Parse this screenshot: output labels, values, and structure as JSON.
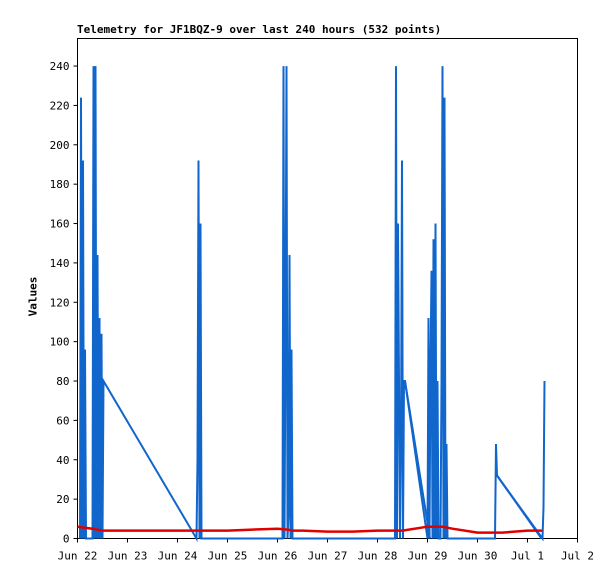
{
  "chart_data": {
    "type": "line",
    "title": "Telemetry for JF1BQZ-9 over last 240 hours (532 points)",
    "ylabel": "Values",
    "xlabel": "",
    "ylim": [
      0,
      254
    ],
    "y_ticks": [
      0,
      20,
      40,
      60,
      80,
      100,
      120,
      140,
      160,
      180,
      200,
      220,
      240
    ],
    "x_ticks": [
      "Jun 22",
      "Jun 23",
      "Jun 24",
      "Jun 25",
      "Jun 26",
      "Jun 27",
      "Jun 28",
      "Jun 29",
      "Jun 30",
      "Jul 1",
      "Jul 2"
    ],
    "x_range_days": [
      0,
      10
    ],
    "grid": false,
    "colors": {
      "blue": "#1166cc",
      "red": "#e00000",
      "axis": "#000000"
    },
    "series": [
      {
        "color": "#1166cc",
        "x": [
          0.05,
          0.07,
          0.09,
          0.11,
          0.13,
          0.15,
          0.17,
          0.2,
          0.3,
          0.32,
          0.34,
          0.36,
          0.38,
          0.4,
          0.42,
          0.44,
          0.46,
          0.48,
          0.5,
          0.52,
          2.38,
          2.4,
          2.42,
          2.44,
          2.46,
          2.48,
          4.1,
          4.12,
          4.14,
          4.16,
          4.18,
          4.2,
          4.22,
          4.24,
          4.26,
          4.28,
          4.3,
          6.35,
          6.37,
          6.39,
          6.41,
          6.45,
          6.47,
          6.49,
          6.51,
          6.53,
          6.55,
          7.0,
          7.02,
          7.04,
          7.06,
          7.08,
          7.1,
          7.12,
          7.14,
          7.16,
          7.18,
          7.2,
          7.22,
          7.24,
          7.26,
          7.28,
          7.3,
          7.32,
          7.34,
          7.36,
          7.38,
          7.4,
          8.35,
          8.37,
          8.39,
          9.3,
          9.32,
          9.34
        ],
        "values": [
          0,
          224,
          0,
          192,
          0,
          96,
          0,
          0,
          0,
          240,
          0,
          240,
          0,
          144,
          0,
          112,
          0,
          104,
          0,
          80,
          0,
          40,
          192,
          0,
          160,
          0,
          0,
          240,
          0,
          104,
          240,
          0,
          12,
          144,
          0,
          96,
          0,
          0,
          240,
          0,
          160,
          0,
          48,
          192,
          0,
          80,
          80,
          0,
          112,
          0,
          88,
          136,
          0,
          152,
          0,
          160,
          0,
          80,
          0,
          0,
          0,
          80,
          240,
          0,
          224,
          0,
          48,
          0,
          0,
          48,
          32,
          0,
          16,
          80
        ],
        "extra_segment": {
          "x": [
            6.55,
            7.05
          ],
          "values": [
            80,
            0
          ]
        },
        "extra_segment2": {
          "x": [
            8.39,
            9.28
          ],
          "values": [
            32,
            0
          ]
        }
      },
      {
        "color": "#e00000",
        "x": [
          0,
          0.3,
          0.5,
          1,
          2,
          2.5,
          3,
          3.5,
          4,
          4.2,
          4.3,
          4.5,
          5,
          5.5,
          6,
          6.5,
          7,
          7.3,
          7.5,
          8,
          8.5,
          9,
          9.3
        ],
        "values": [
          6,
          5,
          4,
          4,
          4,
          4,
          4,
          4.5,
          5,
          4.5,
          4,
          4,
          3.5,
          3.5,
          4,
          4,
          6,
          6,
          5,
          3,
          3,
          4,
          4
        ]
      }
    ]
  }
}
